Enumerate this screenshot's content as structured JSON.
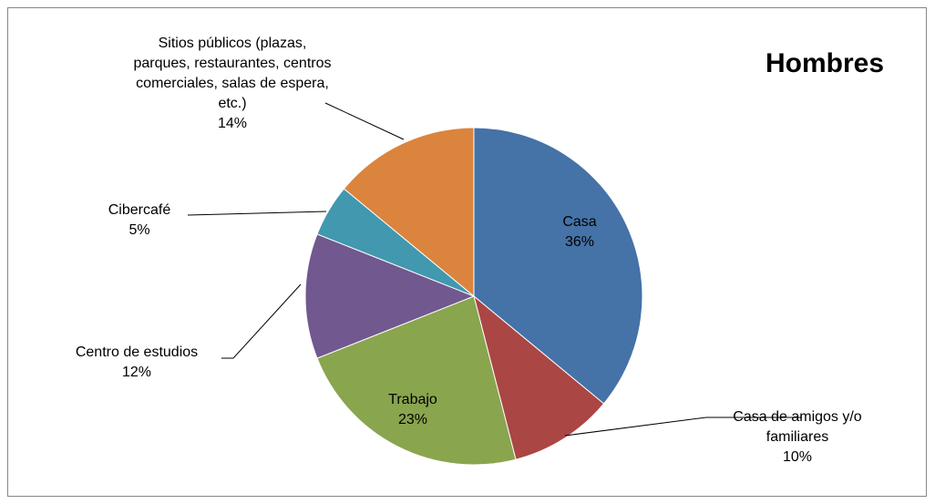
{
  "chart_data": {
    "type": "pie",
    "title": "Hombres",
    "categories": [
      "Casa",
      "Casa de amigos y/o familiares",
      "Trabajo",
      "Centro de estudios",
      "Cibercafé",
      "Sitios públicos (plazas, parques, restaurantes, centros comerciales, salas de espera, etc.)"
    ],
    "values": [
      36,
      10,
      23,
      12,
      5,
      14
    ],
    "value_labels": [
      "36%",
      "10%",
      "23%",
      "12%",
      "5%",
      "14%"
    ],
    "colors": [
      "#4572a7",
      "#aa4643",
      "#89a54e",
      "#71588f",
      "#4198af",
      "#db843d"
    ]
  }
}
